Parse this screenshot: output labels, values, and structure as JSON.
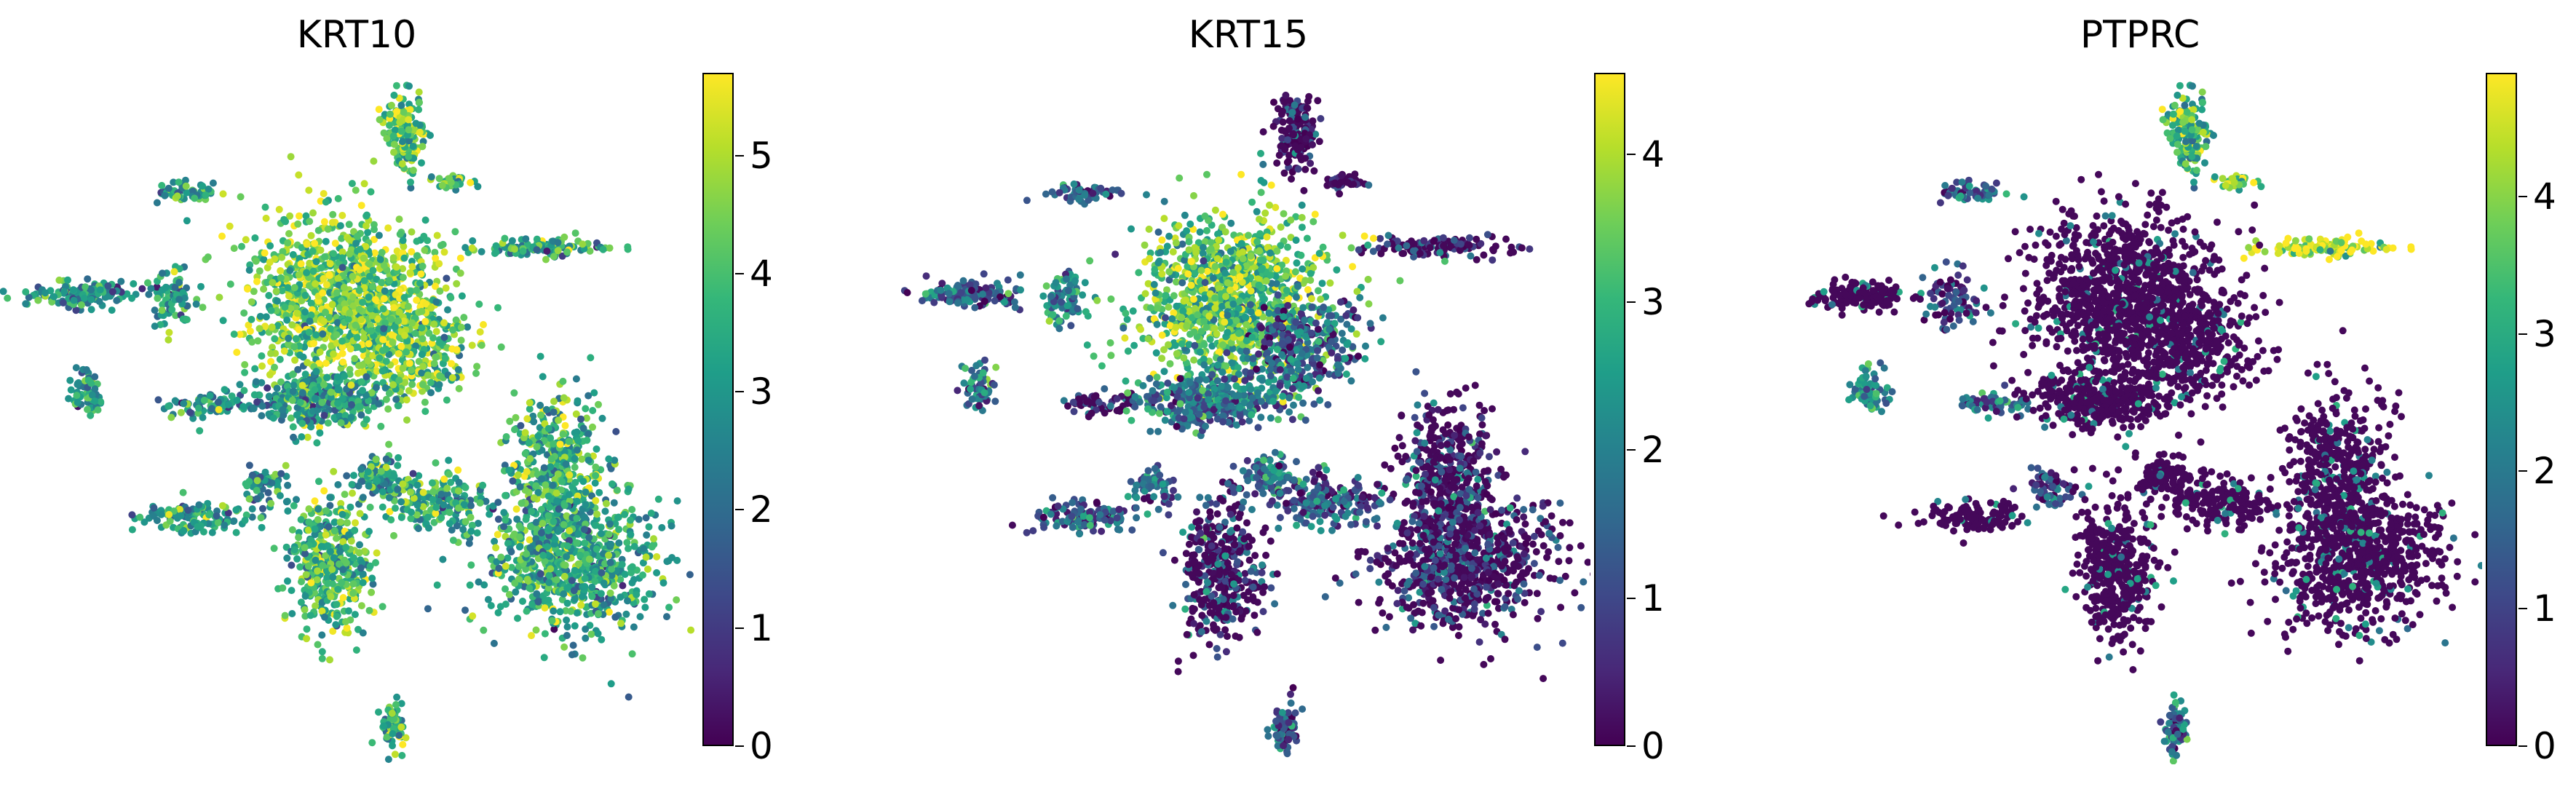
{
  "colormap": {
    "name": "viridis",
    "stops": [
      "#440154",
      "#482878",
      "#3e4989",
      "#31688e",
      "#26828e",
      "#1f9e89",
      "#35b779",
      "#6ece58",
      "#b5de2b",
      "#fde725"
    ]
  },
  "chart_data": [
    {
      "type": "scatter",
      "title": "KRT10",
      "xlabel": "",
      "ylabel": "",
      "color_scale": {
        "min": 0,
        "max": 5.7,
        "ticks": [
          "0",
          "1",
          "2",
          "3",
          "4",
          "5"
        ]
      },
      "grid": false
    },
    {
      "type": "scatter",
      "title": "KRT15",
      "xlabel": "",
      "ylabel": "",
      "color_scale": {
        "min": 0,
        "max": 4.55,
        "ticks": [
          "0",
          "1",
          "2",
          "3",
          "4"
        ]
      },
      "grid": false
    },
    {
      "type": "scatter",
      "title": "PTPRC",
      "xlabel": "",
      "ylabel": "",
      "color_scale": {
        "min": 0,
        "max": 4.9,
        "ticks": [
          "0",
          "1",
          "2",
          "3",
          "4"
        ]
      },
      "grid": false
    }
  ]
}
